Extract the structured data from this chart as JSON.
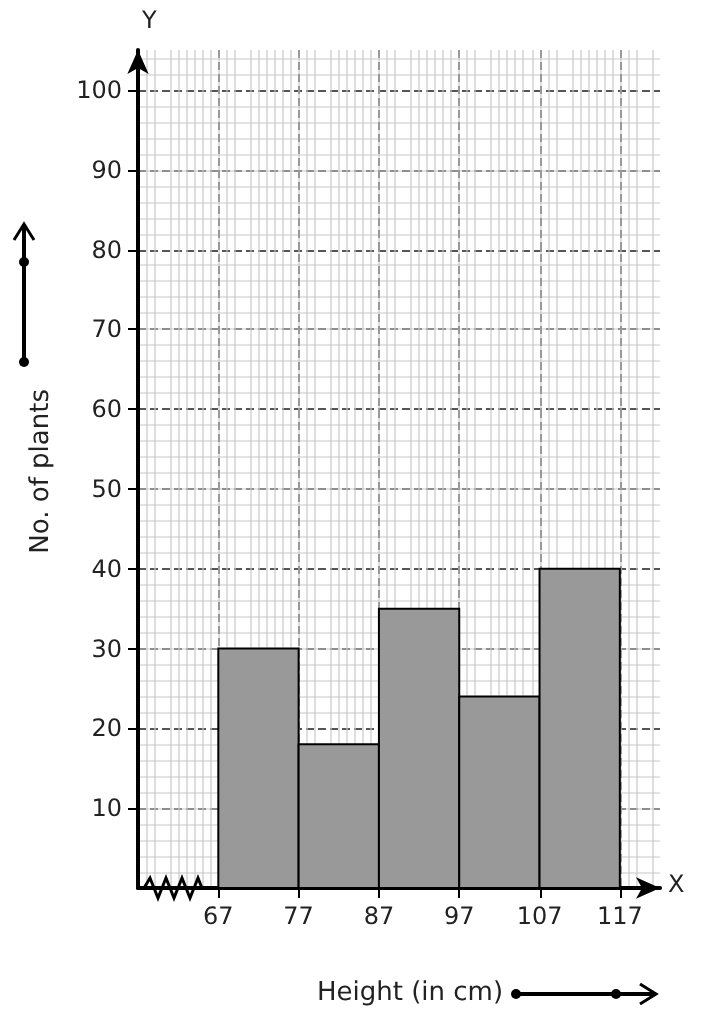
{
  "chart_data": {
    "type": "histogram",
    "xlabel": "Height (in cm)",
    "ylabel": "No. of plants",
    "annotations": [
      "Y",
      "X"
    ],
    "bins": [
      67,
      77,
      87,
      97,
      107,
      117
    ],
    "values": [
      30,
      18,
      35,
      24,
      40
    ],
    "color": "#999999",
    "xlim": [
      57,
      122
    ],
    "xticks": [
      67,
      77,
      87,
      97,
      107,
      117
    ],
    "ylim": [
      0,
      105
    ],
    "yticks": [
      10,
      20,
      30,
      40,
      50,
      60,
      70,
      80,
      90,
      100
    ],
    "grid": true
  }
}
